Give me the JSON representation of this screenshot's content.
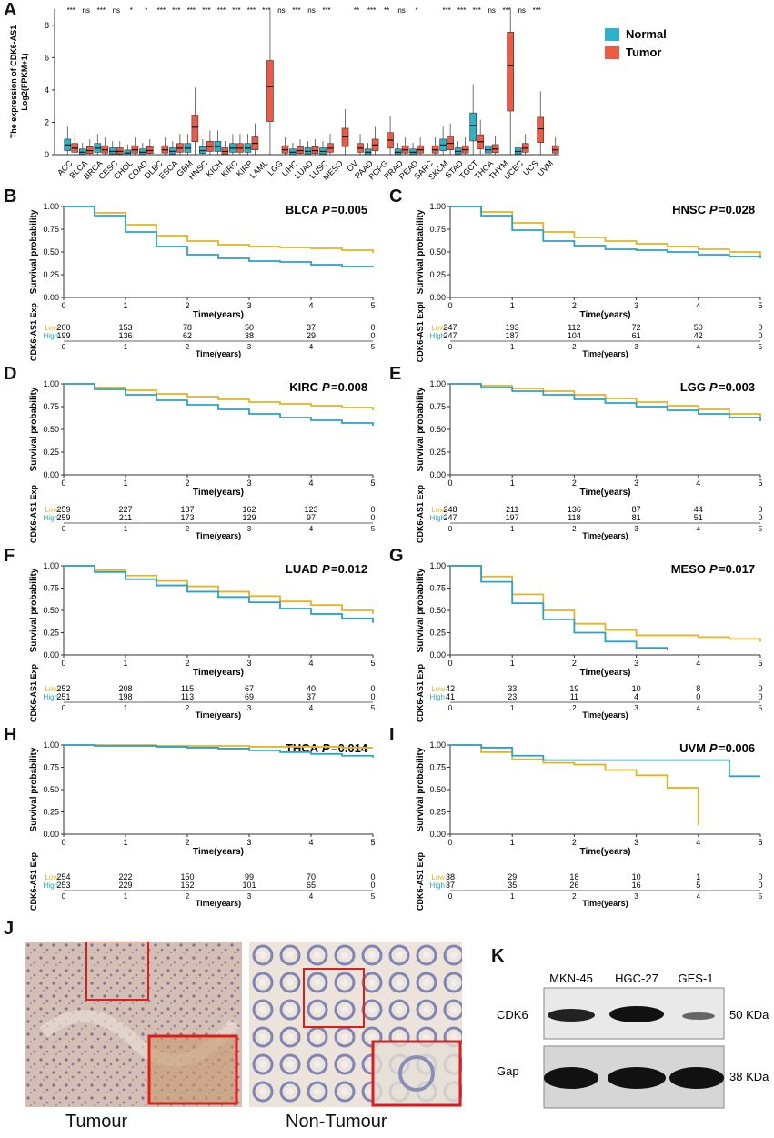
{
  "figure": {
    "panel_labels": [
      "A",
      "B",
      "C",
      "D",
      "E",
      "F",
      "G",
      "H",
      "I",
      "J",
      "K"
    ]
  },
  "colors": {
    "normal": "#29b2c8",
    "tumor": "#ef5a45",
    "low": "#e8b321",
    "high": "#29a3cc"
  },
  "boxplot": {
    "ylabel_line1": "The expression of CDK6-AS1",
    "ylabel_line2": "Log2(FPKM+1)",
    "legend": [
      "Normal",
      "Tumor"
    ],
    "yticks": [
      "0",
      "2",
      "4",
      "6",
      "8"
    ]
  },
  "chart_data": [
    {
      "type": "box",
      "title": "CDK6-AS1 expression across cancers",
      "ylabel": "The expression of CDK6-AS1 Log2(FPKM+1)",
      "ylim": [
        0,
        9
      ],
      "categories": [
        "ACC",
        "BLCA",
        "BRCA",
        "CESC",
        "CHOL",
        "COAD",
        "DLBC",
        "ESCA",
        "GBM",
        "HNSC",
        "KICH",
        "KIRC",
        "KIRP",
        "LAML",
        "LGG",
        "LIHC",
        "LUAD",
        "LUSC",
        "MESO",
        "OV",
        "PAAD",
        "PCPG",
        "PRAD",
        "READ",
        "SARC",
        "SKCM",
        "STAD",
        "TGCT",
        "THCA",
        "THYM",
        "UCEC",
        "UCS",
        "UVM"
      ],
      "significance": [
        "***",
        "ns",
        "***",
        "ns",
        "*",
        "*",
        "***",
        "***",
        "***",
        "***",
        "***",
        "***",
        "***",
        "***",
        "ns",
        "***",
        "ns",
        "***",
        "",
        "**",
        "***",
        "**",
        "ns",
        "*",
        "",
        "***",
        "***",
        "***",
        "ns",
        "***",
        "ns",
        "***",
        ""
      ],
      "normal_median": [
        0.6,
        0.15,
        0.4,
        0.2,
        0.1,
        0.15,
        null,
        0.2,
        0.4,
        0.25,
        0.5,
        0.4,
        0.4,
        null,
        null,
        0.15,
        0.2,
        0.2,
        null,
        null,
        0.15,
        null,
        0.15,
        0.15,
        null,
        0.6,
        0.2,
        1.8,
        0.3,
        null,
        0.2,
        null,
        null
      ],
      "tumor_median": [
        0.4,
        0.25,
        0.3,
        0.2,
        0.3,
        0.25,
        0.3,
        0.4,
        1.7,
        0.5,
        0.2,
        0.4,
        0.7,
        4.2,
        0.3,
        0.25,
        0.25,
        0.4,
        1.1,
        0.4,
        0.6,
        0.9,
        0.3,
        0.3,
        0.3,
        0.7,
        0.3,
        0.8,
        0.35,
        5.5,
        0.4,
        1.6,
        0.3
      ]
    },
    {
      "type": "line",
      "panel": "B",
      "title": "BLCA",
      "pvalue": "0.005",
      "x": [
        0,
        0.5,
        1,
        1.5,
        2,
        2.5,
        3,
        3.5,
        4,
        4.5,
        5
      ],
      "series": [
        {
          "name": "Low",
          "values": [
            1,
            0.93,
            0.8,
            0.68,
            0.62,
            0.58,
            0.56,
            0.55,
            0.54,
            0.52,
            0.49
          ]
        },
        {
          "name": "High",
          "values": [
            1,
            0.9,
            0.72,
            0.56,
            0.47,
            0.43,
            0.4,
            0.39,
            0.36,
            0.34,
            0.33
          ]
        }
      ],
      "ylim": [
        0,
        1
      ],
      "xlabel": "Time(years)",
      "ylabel": "Survival probability"
    },
    {
      "type": "line",
      "panel": "C",
      "title": "HNSC",
      "pvalue": "0.028",
      "x": [
        0,
        0.5,
        1,
        1.5,
        2,
        2.5,
        3,
        3.5,
        4,
        4.5,
        5
      ],
      "series": [
        {
          "name": "Low",
          "values": [
            1,
            0.94,
            0.82,
            0.72,
            0.66,
            0.62,
            0.59,
            0.56,
            0.53,
            0.5,
            0.46
          ]
        },
        {
          "name": "High",
          "values": [
            1,
            0.9,
            0.74,
            0.62,
            0.57,
            0.53,
            0.52,
            0.5,
            0.47,
            0.45,
            0.43
          ]
        }
      ],
      "ylim": [
        0,
        1
      ],
      "xlabel": "Time(years)",
      "ylabel": "Survival probability"
    },
    {
      "type": "line",
      "panel": "D",
      "title": "KIRC",
      "pvalue": "0.008",
      "x": [
        0,
        0.5,
        1,
        1.5,
        2,
        2.5,
        3,
        3.5,
        4,
        4.5,
        5
      ],
      "series": [
        {
          "name": "Low",
          "values": [
            1,
            0.96,
            0.93,
            0.89,
            0.86,
            0.83,
            0.8,
            0.78,
            0.76,
            0.74,
            0.71
          ]
        },
        {
          "name": "High",
          "values": [
            1,
            0.94,
            0.88,
            0.82,
            0.77,
            0.72,
            0.67,
            0.63,
            0.6,
            0.57,
            0.54
          ]
        }
      ],
      "ylim": [
        0,
        1
      ],
      "xlabel": "Time(years)",
      "ylabel": "Survival probability"
    },
    {
      "type": "line",
      "panel": "E",
      "title": "LGG",
      "pvalue": "0.003",
      "x": [
        0,
        0.5,
        1,
        1.5,
        2,
        2.5,
        3,
        3.5,
        4,
        4.5,
        5
      ],
      "series": [
        {
          "name": "Low",
          "values": [
            1,
            0.98,
            0.95,
            0.92,
            0.88,
            0.84,
            0.8,
            0.76,
            0.72,
            0.67,
            0.62
          ]
        },
        {
          "name": "High",
          "values": [
            1,
            0.96,
            0.92,
            0.88,
            0.83,
            0.79,
            0.75,
            0.71,
            0.67,
            0.63,
            0.59
          ]
        }
      ],
      "ylim": [
        0,
        1
      ],
      "xlabel": "Time(years)",
      "ylabel": "Survival probability"
    },
    {
      "type": "line",
      "panel": "F",
      "title": "LUAD",
      "pvalue": "0.012",
      "x": [
        0,
        0.5,
        1,
        1.5,
        2,
        2.5,
        3,
        3.5,
        4,
        4.5,
        5
      ],
      "series": [
        {
          "name": "Low",
          "values": [
            1,
            0.95,
            0.89,
            0.83,
            0.77,
            0.71,
            0.66,
            0.6,
            0.56,
            0.5,
            0.46
          ]
        },
        {
          "name": "High",
          "values": [
            1,
            0.93,
            0.85,
            0.78,
            0.71,
            0.65,
            0.59,
            0.52,
            0.46,
            0.41,
            0.36
          ]
        }
      ],
      "ylim": [
        0,
        1
      ],
      "xlabel": "Time(years)",
      "ylabel": "Survival probability"
    },
    {
      "type": "line",
      "panel": "G",
      "title": "MESO",
      "pvalue": "0.017",
      "x": [
        0,
        0.5,
        1,
        1.5,
        2,
        2.5,
        3,
        3.5,
        4,
        4.5,
        5
      ],
      "series": [
        {
          "name": "Low",
          "values": [
            1,
            0.88,
            0.68,
            0.5,
            0.35,
            0.28,
            0.22,
            0.22,
            0.2,
            0.18,
            0.15
          ]
        },
        {
          "name": "High",
          "values": [
            1,
            0.82,
            0.58,
            0.4,
            0.25,
            0.15,
            0.08,
            0.05,
            null,
            null,
            null
          ]
        }
      ],
      "ylim": [
        0,
        1
      ],
      "xlabel": "Time(years)",
      "ylabel": "Survival probability"
    },
    {
      "type": "line",
      "panel": "H",
      "title": "THCA",
      "pvalue": "0.014",
      "x": [
        0,
        0.5,
        1,
        1.5,
        2,
        2.5,
        3,
        3.5,
        4,
        4.5,
        5
      ],
      "series": [
        {
          "name": "Low",
          "values": [
            1,
            1,
            1,
            0.99,
            0.99,
            0.99,
            0.98,
            0.98,
            0.98,
            0.97,
            0.97
          ]
        },
        {
          "name": "High",
          "values": [
            1,
            0.99,
            0.99,
            0.98,
            0.97,
            0.96,
            0.94,
            0.92,
            0.9,
            0.88,
            0.86
          ]
        }
      ],
      "ylim": [
        0,
        1
      ],
      "xlabel": "Time(years)",
      "ylabel": "Survival probability"
    },
    {
      "type": "line",
      "panel": "I",
      "title": "UVM",
      "pvalue": "0.006",
      "x": [
        0,
        0.5,
        1,
        1.5,
        2,
        2.5,
        3,
        3.5,
        4,
        4.5,
        5
      ],
      "series": [
        {
          "name": "Low",
          "values": [
            1,
            0.92,
            0.84,
            0.8,
            0.78,
            0.72,
            0.66,
            0.52,
            0.1,
            null,
            null
          ]
        },
        {
          "name": "High",
          "values": [
            1,
            0.97,
            0.88,
            0.83,
            0.83,
            0.83,
            0.83,
            0.83,
            0.83,
            0.65,
            0.65
          ]
        }
      ],
      "ylim": [
        0,
        1
      ],
      "xlabel": "Time(years)",
      "ylabel": "Survival probability"
    }
  ],
  "km": {
    "yticks": [
      "0.00",
      "0.25",
      "0.50",
      "0.75",
      "1.00"
    ],
    "xticks": [
      "0",
      "1",
      "2",
      "3",
      "4",
      "5"
    ],
    "xlabel": "Time(years)",
    "ylabel": "Survival probability",
    "risk_ylabel": "CDK6-AS1 Exp",
    "risk_ylabel_c": "CDK6-AS1 Expl",
    "low_label": "Low",
    "high_label": "High",
    "risk": {
      "B": {
        "low": [
          "200",
          "153",
          "78",
          "50",
          "37",
          "0"
        ],
        "high": [
          "199",
          "136",
          "62",
          "38",
          "29",
          "0"
        ]
      },
      "C": {
        "low": [
          "247",
          "193",
          "112",
          "72",
          "50",
          "0"
        ],
        "high": [
          "247",
          "187",
          "104",
          "61",
          "42",
          "0"
        ]
      },
      "D": {
        "low": [
          "259",
          "227",
          "187",
          "162",
          "123",
          "0"
        ],
        "high": [
          "259",
          "211",
          "173",
          "129",
          "97",
          "0"
        ]
      },
      "E": {
        "low": [
          "248",
          "211",
          "136",
          "87",
          "44",
          "0"
        ],
        "high": [
          "247",
          "197",
          "118",
          "81",
          "51",
          "0"
        ]
      },
      "F": {
        "low": [
          "252",
          "208",
          "115",
          "67",
          "40",
          "0"
        ],
        "high": [
          "251",
          "198",
          "113",
          "69",
          "37",
          "0"
        ]
      },
      "G": {
        "low": [
          "42",
          "33",
          "19",
          "10",
          "8",
          "0"
        ],
        "high": [
          "41",
          "23",
          "11",
          "4",
          "0",
          "0"
        ]
      },
      "H": {
        "low": [
          "254",
          "222",
          "150",
          "99",
          "70",
          "0"
        ],
        "high": [
          "253",
          "229",
          "162",
          "101",
          "65",
          "0"
        ]
      },
      "I": {
        "low": [
          "38",
          "29",
          "18",
          "10",
          "1",
          "0"
        ],
        "high": [
          "37",
          "35",
          "26",
          "16",
          "5",
          "0"
        ]
      }
    }
  },
  "ihc": {
    "tumour_caption": "Tumour",
    "nontumour_caption": "Non-Tumour"
  },
  "western": {
    "lanes": [
      "MKN-45",
      "HGC-27",
      "GES-1"
    ],
    "rows": [
      {
        "label": "CDK6",
        "kda": "50 KDa"
      },
      {
        "label": "Gap",
        "kda": "38 KDa"
      }
    ]
  }
}
